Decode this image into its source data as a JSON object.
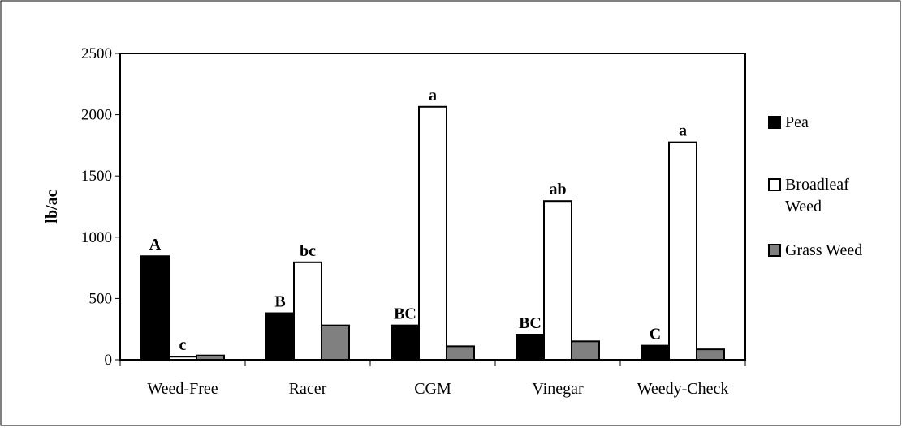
{
  "chart_data": {
    "type": "bar",
    "ylabel": "lb/ac",
    "ylim": [
      0,
      2500
    ],
    "y_ticks": [
      "0",
      "500",
      "1000",
      "1500",
      "2000",
      "2500"
    ],
    "y_tick_values": [
      0,
      500,
      1000,
      1500,
      2000,
      2500
    ],
    "categories": [
      "Weed-Free",
      "Racer",
      "CGM",
      "Vinegar",
      "Weedy-Check"
    ],
    "series": [
      {
        "name": "Pea",
        "color": "#000000",
        "values": [
          845,
          380,
          280,
          205,
          115
        ],
        "labels": [
          "A",
          "B",
          "BC",
          "BC",
          "C"
        ]
      },
      {
        "name": "Broadleaf Weed",
        "legend_lines": [
          "Broadleaf",
          "Weed"
        ],
        "color": "#ffffff",
        "values": [
          25,
          795,
          2065,
          1295,
          1775
        ],
        "labels": [
          "c",
          "bc",
          "a",
          "ab",
          "a"
        ]
      },
      {
        "name": "Grass Weed",
        "color": "#808080",
        "values": [
          35,
          280,
          110,
          150,
          85
        ],
        "labels": [
          "",
          "",
          "",
          "",
          ""
        ]
      }
    ],
    "grid": false,
    "legend_position": "right"
  }
}
